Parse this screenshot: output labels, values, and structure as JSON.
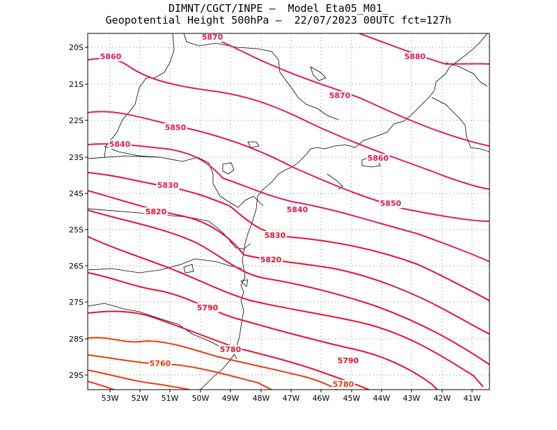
{
  "title": {
    "line1": "DIMNT/CGCT/INPE –  Model Eta05_M01_",
    "line2": "Geopotential Height 500hPa –  22/07/2023 00UTC fct=127h"
  },
  "map": {
    "lat_labels": [
      "20S",
      "21S",
      "22S",
      "23S",
      "24S",
      "25S",
      "26S",
      "27S",
      "28S",
      "29S"
    ],
    "lon_labels": [
      "53W",
      "52W",
      "51W",
      "50W",
      "49W",
      "48W",
      "47W",
      "46W",
      "45W",
      "44W",
      "43W",
      "42W",
      "41W"
    ],
    "contour_labels": [
      "5870",
      "5860",
      "5880",
      "5870",
      "5850",
      "5840",
      "5860",
      "5830",
      "5850",
      "5840",
      "5820",
      "5830",
      "5820",
      "5790",
      "5780",
      "5790",
      "5760",
      "5780"
    ],
    "colors": {
      "high": "#e8185a",
      "mid": "#ee1030",
      "low": "#f03a10",
      "coast": "#000000",
      "grid": "#888888"
    }
  }
}
